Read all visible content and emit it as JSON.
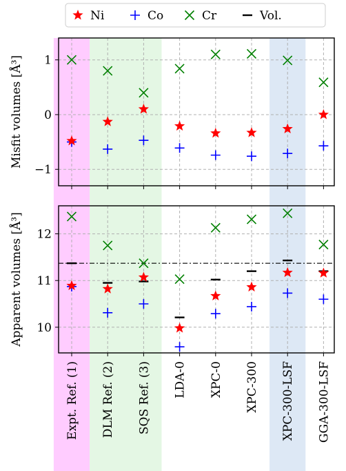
{
  "chart_data": {
    "type": "scatter",
    "categories": [
      "Expt. Ref. (1)",
      "DLM Ref. (2)",
      "SQS Ref. (3)",
      "LDA-0",
      "XPC-0",
      "XPC-300",
      "XPC-300-LSF",
      "GGA-300-LSF"
    ],
    "legend": {
      "position": "top",
      "entries": [
        {
          "key": "ni",
          "label": "Ni",
          "marker": "star",
          "color": "#ff0000"
        },
        {
          "key": "co",
          "label": "Co",
          "marker": "plus",
          "color": "#0000ff"
        },
        {
          "key": "cr",
          "label": "Cr",
          "marker": "x",
          "color": "#008000"
        },
        {
          "key": "vol",
          "label": "Vol.",
          "marker": "hline",
          "color": "#000000"
        }
      ]
    },
    "highlight_bands": [
      {
        "from": 0,
        "to": 0,
        "color": "#ffccff"
      },
      {
        "from": 1,
        "to": 2,
        "color": "#e4f7e4"
      },
      {
        "from": 6,
        "to": 6,
        "color": "#dde8f5"
      }
    ],
    "panels": [
      {
        "key": "misfit",
        "ylabel": "Misfit volumes [Å³]",
        "ylim": [
          -1.3,
          1.4
        ],
        "yticks": [
          -1,
          0,
          1
        ],
        "ytick_labels": [
          "−1",
          "0",
          "1"
        ],
        "grid": true,
        "series": [
          {
            "key": "ni",
            "name": "Ni",
            "values": [
              -0.48,
              -0.13,
              0.1,
              -0.21,
              -0.34,
              -0.33,
              -0.26,
              0.0
            ]
          },
          {
            "key": "co",
            "name": "Co",
            "values": [
              -0.5,
              -0.63,
              -0.47,
              -0.61,
              -0.74,
              -0.76,
              -0.71,
              -0.57
            ]
          },
          {
            "key": "cr",
            "name": "Cr",
            "values": [
              1.0,
              0.8,
              0.4,
              0.84,
              1.1,
              1.11,
              0.99,
              0.59
            ]
          }
        ]
      },
      {
        "key": "apparent",
        "ylabel": "Apparent volumes [Å³]",
        "ylim": [
          9.45,
          12.6
        ],
        "yticks": [
          10,
          11,
          12
        ],
        "ytick_labels": [
          "10",
          "11",
          "12"
        ],
        "grid": true,
        "reference_line": {
          "value": 11.37,
          "style": "dashdot"
        },
        "series": [
          {
            "key": "ni",
            "name": "Ni",
            "values": [
              10.89,
              10.82,
              11.07,
              9.98,
              10.67,
              10.86,
              11.17,
              11.16
            ]
          },
          {
            "key": "co",
            "name": "Co",
            "values": [
              10.87,
              10.31,
              10.5,
              9.58,
              10.29,
              10.44,
              10.73,
              10.6
            ]
          },
          {
            "key": "cr",
            "name": "Cr",
            "values": [
              12.37,
              11.75,
              11.37,
              11.03,
              12.13,
              12.31,
              12.44,
              11.77
            ]
          },
          {
            "key": "vol",
            "name": "Vol.",
            "values": [
              11.37,
              10.95,
              10.98,
              10.21,
              11.02,
              11.2,
              11.43,
              11.2
            ]
          }
        ]
      }
    ]
  }
}
